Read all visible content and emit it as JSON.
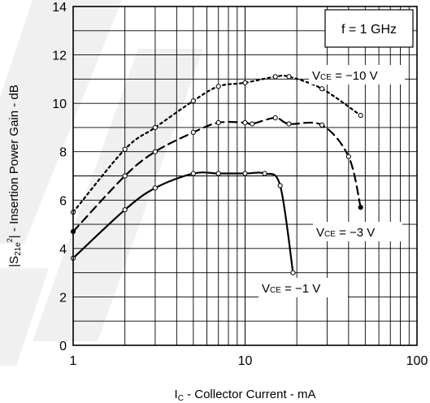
{
  "chart_data": {
    "type": "line",
    "title": "",
    "condition_label": "f = 1 GHz",
    "xlabel": {
      "main": "I",
      "sub": "C",
      "rest": " - Collector Current - mA"
    },
    "ylabel": {
      "pre": "|S",
      "sub": "21e",
      "sup": "2",
      "post": "| - Insertion Power Gain - dB"
    },
    "x_scale": "log",
    "xlim": [
      1,
      100
    ],
    "ylim": [
      0,
      14
    ],
    "x_ticks": [
      {
        "value": 1,
        "label": "1"
      },
      {
        "value": 10,
        "label": "10"
      },
      {
        "value": 100,
        "label": "100"
      }
    ],
    "y_ticks": [
      {
        "value": 0,
        "label": "0"
      },
      {
        "value": 2,
        "label": "2"
      },
      {
        "value": 4,
        "label": "4"
      },
      {
        "value": 6,
        "label": "6"
      },
      {
        "value": 8,
        "label": "8"
      },
      {
        "value": 10,
        "label": "10"
      },
      {
        "value": 12,
        "label": "12"
      },
      {
        "value": 14,
        "label": "14"
      }
    ],
    "grid": true,
    "series": [
      {
        "label_main": "V",
        "label_sub": "CE",
        "label_rest": " = −10 V",
        "line_style": "dotted",
        "x": [
          1,
          2,
          3,
          5,
          7,
          10,
          15,
          18,
          28,
          47
        ],
        "y": [
          5.5,
          8.1,
          9.0,
          10.1,
          10.7,
          10.85,
          11.1,
          11.1,
          10.6,
          9.5
        ]
      },
      {
        "label_main": "V",
        "label_sub": "CE",
        "label_rest": " = −3 V",
        "line_style": "dashed",
        "x": [
          1,
          2,
          3,
          5,
          7,
          10,
          11,
          15,
          18,
          28,
          40,
          47
        ],
        "y": [
          4.7,
          7.0,
          8.0,
          8.8,
          9.2,
          9.2,
          9.15,
          9.4,
          9.15,
          9.1,
          7.8,
          5.7
        ]
      },
      {
        "label_main": "V",
        "label_sub": "CE",
        "label_rest": " = −1 V",
        "line_style": "solid",
        "x": [
          1,
          2,
          3,
          5,
          7,
          10,
          13,
          16,
          19
        ],
        "y": [
          3.6,
          5.6,
          6.5,
          7.1,
          7.1,
          7.1,
          7.1,
          6.6,
          3.0
        ]
      }
    ]
  }
}
